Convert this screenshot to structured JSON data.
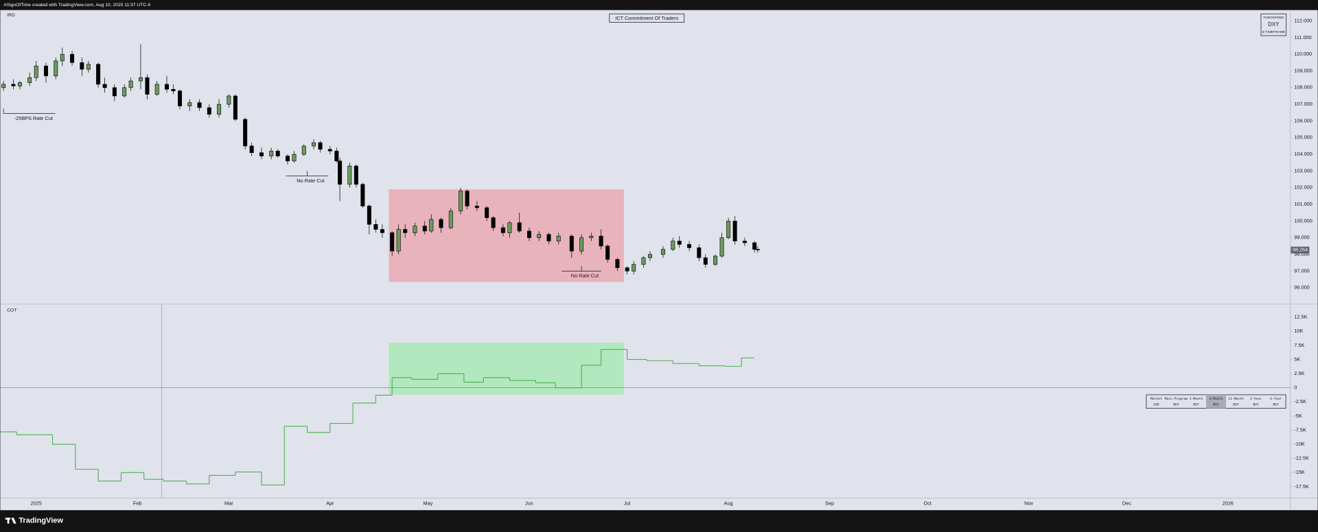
{
  "header": {
    "credit": "ASignOfTime created with TradingView.com, Aug 10, 2025 11:37 UTC-4"
  },
  "chart_data": [
    {
      "type": "candlestick",
      "title": "ICT Commitment Of Traders",
      "label": "IRD",
      "up_color": "#6b9a5f",
      "down_color": "#000000",
      "xlim": [
        0,
        395
      ],
      "ylim": [
        95.04,
        112.65
      ],
      "yticks": [
        {
          "value": 96,
          "label": "96.000"
        },
        {
          "value": 97,
          "label": "97.000"
        },
        {
          "value": 98,
          "label": "98.000"
        },
        {
          "value": 99,
          "label": "99.000"
        },
        {
          "value": 100,
          "label": "100.000"
        },
        {
          "value": 101,
          "label": "101.000"
        },
        {
          "value": 102,
          "label": "102.000"
        },
        {
          "value": 103,
          "label": "103.000"
        },
        {
          "value": 104,
          "label": "104.000"
        },
        {
          "value": 105,
          "label": "105.000"
        },
        {
          "value": 106,
          "label": "106.000"
        },
        {
          "value": 107,
          "label": "107.000"
        },
        {
          "value": 108,
          "label": "108.000"
        },
        {
          "value": 109,
          "label": "109.000"
        },
        {
          "value": 110,
          "label": "110.000"
        },
        {
          "value": 111,
          "label": "111.000"
        },
        {
          "value": 112,
          "label": "112.000"
        }
      ],
      "x": [
        1,
        4,
        6,
        9,
        11,
        14,
        17,
        19,
        22,
        25,
        27,
        30,
        32,
        35,
        38,
        40,
        43,
        45,
        48,
        51,
        53,
        55,
        58,
        61,
        64,
        67,
        70,
        72,
        75,
        77,
        80,
        83,
        85,
        88,
        90,
        93,
        96,
        98,
        101,
        103,
        104,
        107,
        109,
        111,
        113,
        115,
        117,
        120,
        122,
        124,
        127,
        130,
        132,
        135,
        138,
        141,
        143,
        146,
        149,
        151,
        154,
        156,
        159,
        162,
        165,
        168,
        171,
        175,
        178,
        181,
        184,
        186,
        189,
        192,
        194,
        197,
        199,
        203,
        206,
        208,
        211,
        214,
        216,
        219,
        221,
        223,
        225,
        228,
        231,
        232
      ],
      "open": [
        108.0,
        108.2,
        108.1,
        108.3,
        108.6,
        109.3,
        108.7,
        109.6,
        110.0,
        109.5,
        109.1,
        109.4,
        108.2,
        108.0,
        107.5,
        108.0,
        108.4,
        108.6,
        107.6,
        108.2,
        107.9,
        107.8,
        106.9,
        107.1,
        106.8,
        106.4,
        107.0,
        107.5,
        106.1,
        104.5,
        104.1,
        103.9,
        104.2,
        103.9,
        103.6,
        104.0,
        104.5,
        104.7,
        104.3,
        104.2,
        103.6,
        102.2,
        103.3,
        102.2,
        100.9,
        99.8,
        99.5,
        99.3,
        98.2,
        99.5,
        99.3,
        99.7,
        99.4,
        100.1,
        99.6,
        100.6,
        101.8,
        100.9,
        100.8,
        100.2,
        99.6,
        99.3,
        99.9,
        99.4,
        99.0,
        99.2,
        98.8,
        99.1,
        98.2,
        99.0,
        99.1,
        98.5,
        97.7,
        97.2,
        97.0,
        97.4,
        97.8,
        98.0,
        98.3,
        98.8,
        98.6,
        98.4,
        97.8,
        97.4,
        97.9,
        99.0,
        100.0,
        98.8,
        98.7,
        98.3
      ],
      "high": [
        108.4,
        108.5,
        108.4,
        108.9,
        109.6,
        109.5,
        109.8,
        110.4,
        110.2,
        109.8,
        109.6,
        109.5,
        108.6,
        108.2,
        108.2,
        108.6,
        110.6,
        108.8,
        108.4,
        108.7,
        108.2,
        107.9,
        107.3,
        107.3,
        107.0,
        107.3,
        107.6,
        107.6,
        106.2,
        104.7,
        104.4,
        104.4,
        104.3,
        104.0,
        104.2,
        104.6,
        104.9,
        104.8,
        104.5,
        104.4,
        103.8,
        103.5,
        103.4,
        102.3,
        101.0,
        100.1,
        99.8,
        99.4,
        99.8,
        99.8,
        99.9,
        100.0,
        100.4,
        100.2,
        100.8,
        102.0,
        101.9,
        101.2,
        100.9,
        100.3,
        99.8,
        100.0,
        100.5,
        99.6,
        99.4,
        99.3,
        99.3,
        99.2,
        99.2,
        99.3,
        99.5,
        98.6,
        97.8,
        97.3,
        97.6,
        97.9,
        98.2,
        98.5,
        99.0,
        99.1,
        98.8,
        98.6,
        98.0,
        98.0,
        99.3,
        100.2,
        100.3,
        99.0,
        98.8,
        98.5
      ],
      "low": [
        107.8,
        107.9,
        107.9,
        108.1,
        108.4,
        108.3,
        108.5,
        109.3,
        109.3,
        108.7,
        108.9,
        108.0,
        107.7,
        107.2,
        107.4,
        107.8,
        107.9,
        107.3,
        107.5,
        107.7,
        107.6,
        106.7,
        106.6,
        106.6,
        106.2,
        106.2,
        106.8,
        106.0,
        104.3,
        103.9,
        103.7,
        103.7,
        103.8,
        103.4,
        103.5,
        103.9,
        104.3,
        104.1,
        104.0,
        103.5,
        101.2,
        102.0,
        102.0,
        100.8,
        99.2,
        99.3,
        99.0,
        97.9,
        98.0,
        99.0,
        99.1,
        99.2,
        99.3,
        99.3,
        99.5,
        100.4,
        100.7,
        100.6,
        100.0,
        99.4,
        99.1,
        99.0,
        99.3,
        98.8,
        98.8,
        98.6,
        98.6,
        97.8,
        98.0,
        98.8,
        98.3,
        97.5,
        97.0,
        96.8,
        96.8,
        97.2,
        97.6,
        97.8,
        98.2,
        98.4,
        98.2,
        97.6,
        97.2,
        97.3,
        97.8,
        98.9,
        98.6,
        98.5,
        98.1,
        98.1
      ],
      "close": [
        108.2,
        108.1,
        108.3,
        108.6,
        109.3,
        108.7,
        109.6,
        110.0,
        109.5,
        109.1,
        109.4,
        108.2,
        108.0,
        107.5,
        108.0,
        108.4,
        108.6,
        107.6,
        108.2,
        107.9,
        107.8,
        106.9,
        107.1,
        106.8,
        106.4,
        107.0,
        107.5,
        106.1,
        104.5,
        104.1,
        103.9,
        104.2,
        103.9,
        103.6,
        104.0,
        104.5,
        104.7,
        104.3,
        104.2,
        103.6,
        102.2,
        103.3,
        102.2,
        100.9,
        99.8,
        99.5,
        99.3,
        98.2,
        99.5,
        99.3,
        99.7,
        99.4,
        100.1,
        99.6,
        100.6,
        101.8,
        100.9,
        100.8,
        100.2,
        99.6,
        99.3,
        99.9,
        99.4,
        99.0,
        99.2,
        98.8,
        99.1,
        98.2,
        99.0,
        99.1,
        98.5,
        97.7,
        97.2,
        97.0,
        97.4,
        97.8,
        98.0,
        98.3,
        98.8,
        98.6,
        98.4,
        97.8,
        97.4,
        97.9,
        99.0,
        100.0,
        98.8,
        98.7,
        98.3,
        98.264
      ],
      "last_label": "98.264",
      "box": {
        "x": [
          119,
          191
        ],
        "y": [
          96.35,
          101.9
        ],
        "color": "#e8b3bc"
      },
      "annotations": [
        {
          "text": "-25BPS Rate Cut",
          "x": [
            1,
            16.8
          ],
          "y": 106.45
        },
        {
          "text": "No Rate Cut",
          "x": [
            87.5,
            100.5
          ],
          "y": 102.7
        },
        {
          "text": "No Rate Cut",
          "x": [
            172,
            184
          ],
          "y": 97.0
        }
      ]
    },
    {
      "type": "line",
      "label": "COT",
      "color": "#4caf50",
      "step": true,
      "xlim": [
        0,
        395
      ],
      "ylim": [
        -19430,
        14730
      ],
      "yticks": [
        {
          "value": 12500,
          "label": "12.5K"
        },
        {
          "value": 10000,
          "label": "10K"
        },
        {
          "value": 7500,
          "label": "7.5K"
        },
        {
          "value": 5000,
          "label": "5K"
        },
        {
          "value": 2500,
          "label": "2.5K"
        },
        0,
        {
          "value": -2500,
          "label": "-2.5K"
        },
        {
          "value": -5000,
          "label": "-5K"
        },
        {
          "value": -7500,
          "label": "-7.5K"
        },
        {
          "value": -10000,
          "label": "-10K"
        },
        {
          "value": -12500,
          "label": "-12.5K"
        },
        {
          "value": -15000,
          "label": "-15K"
        },
        {
          "value": -17500,
          "label": "-17.5K"
        }
      ],
      "xticks": [
        {
          "value": 11,
          "label": "2025"
        },
        {
          "value": 42,
          "label": "Feb"
        },
        {
          "value": 70,
          "label": "Mar"
        },
        {
          "value": 101,
          "label": "Apr"
        },
        {
          "value": 131,
          "label": "May"
        },
        {
          "value": 162,
          "label": "Jun"
        },
        {
          "value": 192,
          "label": "Jul"
        },
        {
          "value": 223,
          "label": "Aug"
        },
        {
          "value": 254,
          "label": "Sep"
        },
        {
          "value": 284,
          "label": "Oct"
        },
        {
          "value": 315,
          "label": "Nov"
        },
        {
          "value": 345,
          "label": "Dec"
        },
        {
          "value": 376,
          "label": "2026"
        }
      ],
      "x": [
        0,
        5,
        16,
        23,
        30,
        37,
        44,
        50,
        57,
        64,
        72,
        80,
        87,
        94,
        101,
        108,
        115,
        120,
        126,
        134,
        142,
        148,
        156,
        164,
        170,
        178,
        184,
        192,
        198,
        206,
        214,
        222,
        227
      ],
      "values": [
        -7800,
        -8300,
        -10000,
        -14400,
        -16500,
        -15000,
        -16200,
        -16500,
        -17000,
        -15500,
        -14900,
        -17200,
        -6800,
        -7900,
        -6300,
        -2700,
        -1300,
        1800,
        1500,
        2500,
        1000,
        1800,
        1300,
        900,
        0,
        4000,
        6800,
        5000,
        4800,
        4300,
        3900,
        3800,
        5300
      ],
      "box": {
        "x": [
          119,
          191
        ],
        "y": [
          -1200,
          8000
        ],
        "color": "#b1e8bd"
      }
    }
  ],
  "info_box": {
    "line1": "TODOSFREE",
    "line2": "DXY",
    "line3": "D TIMEFRAME"
  },
  "table": {
    "header": [
      "Market",
      "Main-Program",
      "3-Month",
      "6-Month",
      "12-Month",
      "2-Year",
      "4-Year"
    ],
    "rows": [
      [
        "USD",
        "BUY",
        "BUY",
        "BUY",
        "BUY",
        "BUY",
        "BUY"
      ]
    ]
  },
  "branding": "TradingView"
}
